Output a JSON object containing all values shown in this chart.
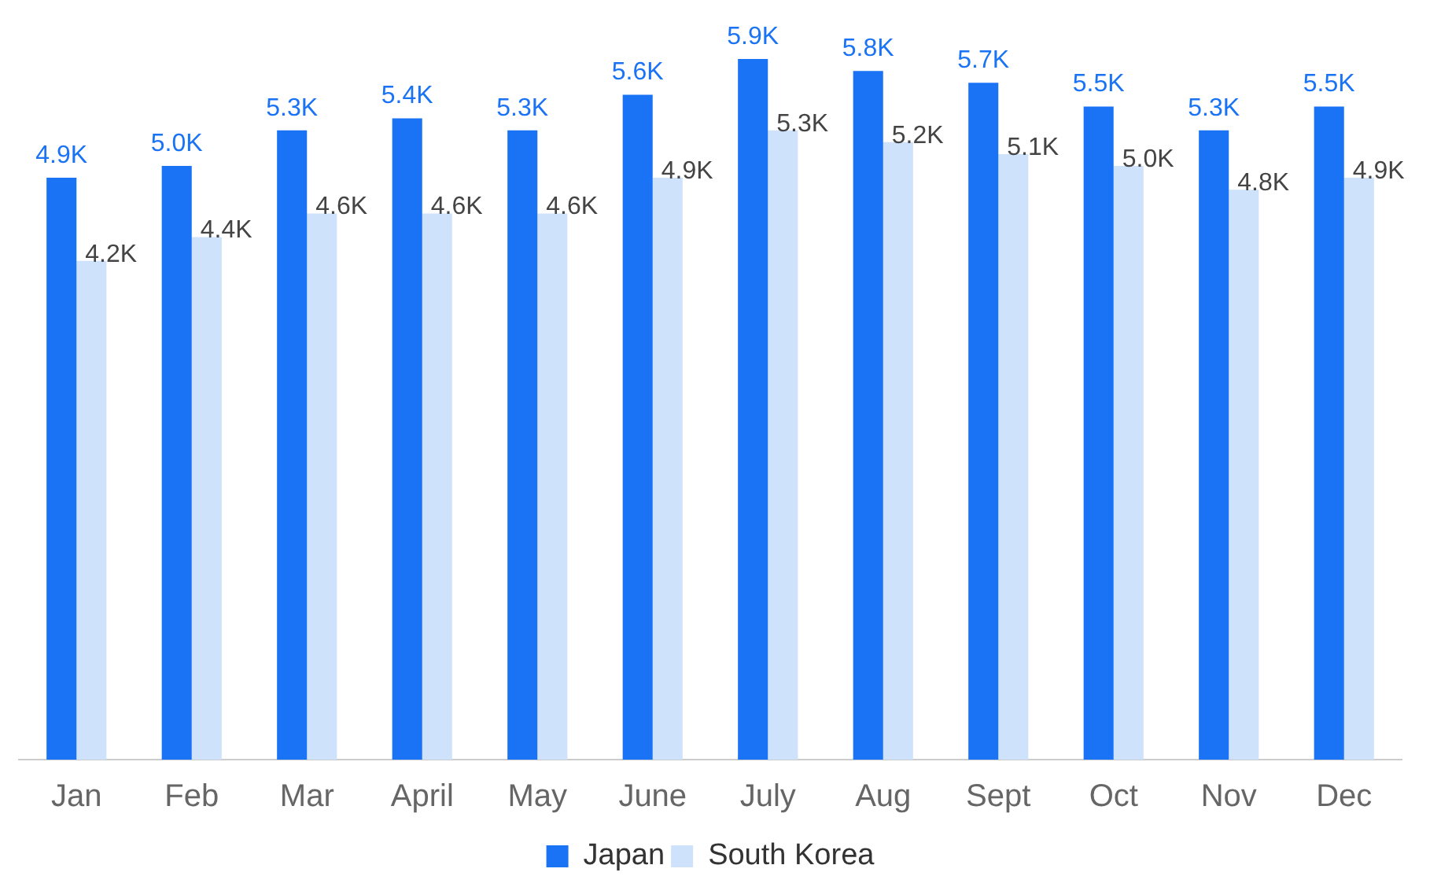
{
  "chart_data": {
    "type": "bar",
    "categories": [
      "Jan",
      "Feb",
      "Mar",
      "April",
      "May",
      "June",
      "July",
      "Aug",
      "Sept",
      "Oct",
      "Nov",
      "Dec"
    ],
    "series": [
      {
        "name": "Japan",
        "color": "#1a73f5",
        "values": [
          4900,
          5000,
          5300,
          5400,
          5300,
          5600,
          5900,
          5800,
          5700,
          5500,
          5300,
          5500
        ],
        "value_labels": [
          "4.9K",
          "5.0K",
          "5.3K",
          "5.4K",
          "5.3K",
          "5.6K",
          "5.9K",
          "5.8K",
          "5.7K",
          "5.5K",
          "5.3K",
          "5.5K"
        ]
      },
      {
        "name": "South Korea",
        "color": "#cfe2fc",
        "values": [
          4200,
          4400,
          4600,
          4600,
          4600,
          4900,
          5300,
          5200,
          5100,
          5000,
          4800,
          4900
        ],
        "value_labels": [
          "4.2K",
          "4.4K",
          "4.6K",
          "4.6K",
          "4.6K",
          "4.9K",
          "5.3K",
          "5.2K",
          "5.1K",
          "5.0K",
          "4.8K",
          "4.9K"
        ]
      }
    ],
    "legend": "bottom",
    "grid": false
  }
}
